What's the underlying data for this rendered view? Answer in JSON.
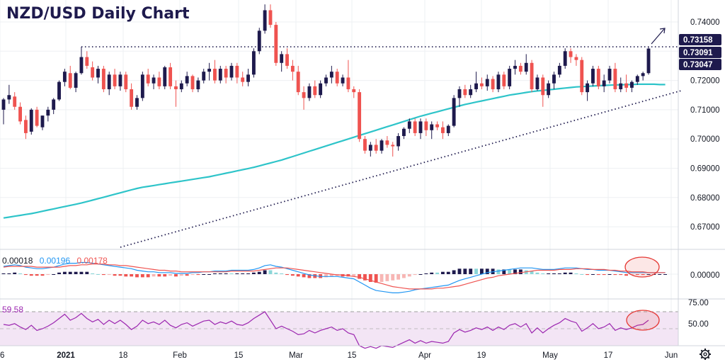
{
  "title": "NZD/USD Daily Chart",
  "colors": {
    "up": "#1e1a4d",
    "down": "#ef5350",
    "ma": "#2ec4c9",
    "macd_line": "#2196f3",
    "signal_line": "#ef5350",
    "rsi": "#9c27b0",
    "rsi_band": "#f3e5f5",
    "ellipse": "#e53935",
    "tag_bg": "#1e1a4d",
    "text": "#131722",
    "grid": "#eef0f3"
  },
  "x_labels": [
    "6",
    "2021",
    "18",
    "Feb",
    "15",
    "Mar",
    "15",
    "Apr",
    "19",
    "May",
    "17",
    "Jun"
  ],
  "price_axis": {
    "ticks": [
      "0.74000",
      "0.73000",
      "0.72000",
      "0.71000",
      "0.70000",
      "0.69000",
      "0.68000",
      "0.67000"
    ],
    "tags": [
      "0.73158",
      "0.73091",
      "0.73047"
    ]
  },
  "macd": {
    "values": [
      "0.00018",
      "0.00196",
      "0.00178"
    ],
    "axis_ticks": [
      "0.00000"
    ]
  },
  "rsi": {
    "value": "59.58",
    "axis_ticks": [
      "75.00",
      "50.00"
    ]
  },
  "gear_icon": "gear-icon",
  "chart_data": {
    "type": "candlestick",
    "title": "NZD/USD Daily Chart",
    "ylim": [
      0.663,
      0.7475
    ],
    "resistance": 0.7315,
    "ma_label": "",
    "candles": [
      [
        0.71,
        0.714,
        0.705,
        0.7135
      ],
      [
        0.7135,
        0.7185,
        0.712,
        0.715
      ],
      [
        0.7145,
        0.716,
        0.71,
        0.711
      ],
      [
        0.711,
        0.7125,
        0.705,
        0.706
      ],
      [
        0.7065,
        0.708,
        0.7,
        0.702
      ],
      [
        0.7025,
        0.7105,
        0.7015,
        0.71
      ],
      [
        0.71,
        0.711,
        0.704,
        0.7045
      ],
      [
        0.704,
        0.708,
        0.703,
        0.708
      ],
      [
        0.708,
        0.711,
        0.706,
        0.71
      ],
      [
        0.71,
        0.714,
        0.7085,
        0.7135
      ],
      [
        0.7135,
        0.72,
        0.713,
        0.7195
      ],
      [
        0.7195,
        0.724,
        0.718,
        0.723
      ],
      [
        0.7225,
        0.725,
        0.717,
        0.7175
      ],
      [
        0.7175,
        0.723,
        0.716,
        0.7225
      ],
      [
        0.7225,
        0.7315,
        0.722,
        0.728
      ],
      [
        0.728,
        0.73,
        0.724,
        0.725
      ],
      [
        0.7245,
        0.7265,
        0.72,
        0.721
      ],
      [
        0.721,
        0.725,
        0.719,
        0.724
      ],
      [
        0.724,
        0.725,
        0.716,
        0.717
      ],
      [
        0.717,
        0.723,
        0.715,
        0.722
      ],
      [
        0.722,
        0.724,
        0.717,
        0.718
      ],
      [
        0.718,
        0.723,
        0.7165,
        0.722
      ],
      [
        0.722,
        0.723,
        0.716,
        0.717
      ],
      [
        0.717,
        0.719,
        0.71,
        0.711
      ],
      [
        0.711,
        0.715,
        0.71,
        0.714
      ],
      [
        0.714,
        0.723,
        0.713,
        0.722
      ],
      [
        0.722,
        0.724,
        0.718,
        0.719
      ],
      [
        0.719,
        0.722,
        0.717,
        0.721
      ],
      [
        0.721,
        0.723,
        0.717,
        0.718
      ],
      [
        0.718,
        0.725,
        0.717,
        0.7245
      ],
      [
        0.7245,
        0.726,
        0.717,
        0.718
      ],
      [
        0.718,
        0.72,
        0.711,
        0.717
      ],
      [
        0.717,
        0.72,
        0.716,
        0.719
      ],
      [
        0.719,
        0.723,
        0.718,
        0.7215
      ],
      [
        0.7215,
        0.722,
        0.716,
        0.717
      ],
      [
        0.717,
        0.721,
        0.716,
        0.72
      ],
      [
        0.72,
        0.724,
        0.719,
        0.723
      ],
      [
        0.723,
        0.726,
        0.72,
        0.724
      ],
      [
        0.724,
        0.727,
        0.719,
        0.72
      ],
      [
        0.72,
        0.725,
        0.719,
        0.724
      ],
      [
        0.724,
        0.725,
        0.719,
        0.721
      ],
      [
        0.721,
        0.726,
        0.72,
        0.725
      ],
      [
        0.725,
        0.726,
        0.719,
        0.721
      ],
      [
        0.721,
        0.723,
        0.718,
        0.7195
      ],
      [
        0.7195,
        0.724,
        0.718,
        0.722
      ],
      [
        0.722,
        0.731,
        0.721,
        0.73
      ],
      [
        0.73,
        0.738,
        0.729,
        0.737
      ],
      [
        0.737,
        0.746,
        0.736,
        0.744
      ],
      [
        0.744,
        0.746,
        0.738,
        0.739
      ],
      [
        0.739,
        0.74,
        0.725,
        0.726
      ],
      [
        0.726,
        0.73,
        0.723,
        0.729
      ],
      [
        0.729,
        0.731,
        0.724,
        0.725
      ],
      [
        0.725,
        0.727,
        0.72,
        0.723
      ],
      [
        0.723,
        0.725,
        0.715,
        0.716
      ],
      [
        0.716,
        0.718,
        0.71,
        0.714
      ],
      [
        0.714,
        0.719,
        0.713,
        0.718
      ],
      [
        0.718,
        0.72,
        0.714,
        0.715
      ],
      [
        0.715,
        0.72,
        0.714,
        0.719
      ],
      [
        0.719,
        0.722,
        0.718,
        0.721
      ],
      [
        0.721,
        0.725,
        0.719,
        0.723
      ],
      [
        0.723,
        0.724,
        0.718,
        0.719
      ],
      [
        0.719,
        0.722,
        0.718,
        0.721
      ],
      [
        0.721,
        0.727,
        0.716,
        0.717
      ],
      [
        0.717,
        0.718,
        0.714,
        0.716
      ],
      [
        0.716,
        0.717,
        0.699,
        0.7
      ],
      [
        0.7,
        0.701,
        0.695,
        0.696
      ],
      [
        0.696,
        0.699,
        0.694,
        0.698
      ],
      [
        0.698,
        0.7,
        0.695,
        0.696
      ],
      [
        0.696,
        0.7,
        0.695,
        0.6995
      ],
      [
        0.6995,
        0.701,
        0.697,
        0.698
      ],
      [
        0.698,
        0.699,
        0.694,
        0.6975
      ],
      [
        0.6975,
        0.702,
        0.696,
        0.701
      ],
      [
        0.701,
        0.704,
        0.7,
        0.7035
      ],
      [
        0.7035,
        0.707,
        0.702,
        0.706
      ],
      [
        0.706,
        0.707,
        0.701,
        0.702
      ],
      [
        0.702,
        0.707,
        0.7,
        0.706
      ],
      [
        0.706,
        0.707,
        0.701,
        0.703
      ],
      [
        0.703,
        0.706,
        0.7,
        0.705
      ],
      [
        0.705,
        0.706,
        0.703,
        0.704
      ],
      [
        0.704,
        0.706,
        0.7,
        0.702
      ],
      [
        0.702,
        0.705,
        0.701,
        0.7045
      ],
      [
        0.7045,
        0.715,
        0.704,
        0.714
      ],
      [
        0.714,
        0.718,
        0.711,
        0.717
      ],
      [
        0.717,
        0.7185,
        0.714,
        0.715
      ],
      [
        0.715,
        0.7185,
        0.714,
        0.717
      ],
      [
        0.717,
        0.723,
        0.716,
        0.719
      ],
      [
        0.719,
        0.721,
        0.717,
        0.718
      ],
      [
        0.718,
        0.722,
        0.7165,
        0.7205
      ],
      [
        0.7205,
        0.7215,
        0.716,
        0.717
      ],
      [
        0.717,
        0.723,
        0.716,
        0.722
      ],
      [
        0.722,
        0.723,
        0.717,
        0.718
      ],
      [
        0.718,
        0.725,
        0.717,
        0.724
      ],
      [
        0.724,
        0.727,
        0.722,
        0.725
      ],
      [
        0.725,
        0.726,
        0.722,
        0.723
      ],
      [
        0.723,
        0.729,
        0.722,
        0.726
      ],
      [
        0.726,
        0.727,
        0.716,
        0.717
      ],
      [
        0.717,
        0.722,
        0.7165,
        0.721
      ],
      [
        0.721,
        0.722,
        0.711,
        0.715
      ],
      [
        0.715,
        0.72,
        0.714,
        0.719
      ],
      [
        0.719,
        0.723,
        0.717,
        0.722
      ],
      [
        0.722,
        0.726,
        0.721,
        0.725
      ],
      [
        0.725,
        0.731,
        0.724,
        0.73
      ],
      [
        0.73,
        0.731,
        0.726,
        0.728
      ],
      [
        0.728,
        0.729,
        0.725,
        0.727
      ],
      [
        0.727,
        0.728,
        0.715,
        0.716
      ],
      [
        0.716,
        0.72,
        0.713,
        0.719
      ],
      [
        0.719,
        0.725,
        0.718,
        0.724
      ],
      [
        0.724,
        0.725,
        0.717,
        0.718
      ],
      [
        0.718,
        0.722,
        0.716,
        0.72
      ],
      [
        0.72,
        0.725,
        0.719,
        0.724
      ],
      [
        0.724,
        0.726,
        0.716,
        0.717
      ],
      [
        0.717,
        0.721,
        0.716,
        0.719
      ],
      [
        0.719,
        0.722,
        0.716,
        0.7175
      ],
      [
        0.7175,
        0.72,
        0.716,
        0.7195
      ],
      [
        0.7195,
        0.722,
        0.7185,
        0.7215
      ],
      [
        0.7215,
        0.723,
        0.72,
        0.7225
      ],
      [
        0.7225,
        0.7316,
        0.722,
        0.7309
      ]
    ],
    "ma": [
      0.673,
      0.6733,
      0.6736,
      0.6739,
      0.6742,
      0.6745,
      0.6749,
      0.6753,
      0.6757,
      0.6761,
      0.6765,
      0.6769,
      0.6773,
      0.6777,
      0.6781,
      0.6786,
      0.6791,
      0.6796,
      0.6801,
      0.6806,
      0.6811,
      0.6816,
      0.6821,
      0.6826,
      0.6831,
      0.6835,
      0.6838,
      0.6841,
      0.6844,
      0.6847,
      0.685,
      0.6853,
      0.6856,
      0.6859,
      0.6862,
      0.6865,
      0.6868,
      0.6871,
      0.6875,
      0.6879,
      0.6883,
      0.6887,
      0.6891,
      0.6895,
      0.6899,
      0.6903,
      0.6908,
      0.6913,
      0.6918,
      0.6923,
      0.6928,
      0.6934,
      0.694,
      0.6946,
      0.6952,
      0.6958,
      0.6964,
      0.697,
      0.6976,
      0.6982,
      0.6988,
      0.6994,
      0.7,
      0.7006,
      0.7012,
      0.7018,
      0.7024,
      0.703,
      0.7036,
      0.7042,
      0.7048,
      0.7054,
      0.706,
      0.7066,
      0.7072,
      0.7078,
      0.7083,
      0.7088,
      0.7093,
      0.7098,
      0.7103,
      0.7108,
      0.7113,
      0.7118,
      0.7122,
      0.7126,
      0.713,
      0.7134,
      0.7138,
      0.7142,
      0.7146,
      0.715,
      0.7153,
      0.7156,
      0.7159,
      0.7162,
      0.7164,
      0.7166,
      0.7168,
      0.717,
      0.7172,
      0.7174,
      0.7176,
      0.7178,
      0.7179,
      0.718,
      0.7181,
      0.7182,
      0.7183,
      0.7184,
      0.7185,
      0.7185,
      0.7186,
      0.7186,
      0.7187,
      0.7187,
      0.7187,
      0.7187,
      0.7186,
      0.7186
    ],
    "macd_line": [
      0.001,
      0.0011,
      0.0012,
      0.0011,
      0.0009,
      0.0008,
      0.0007,
      0.0007,
      0.0008,
      0.0009,
      0.0011,
      0.0013,
      0.0014,
      0.0014,
      0.0015,
      0.0015,
      0.0014,
      0.0013,
      0.0012,
      0.0011,
      0.001,
      0.0009,
      0.0008,
      0.0007,
      0.0005,
      0.0004,
      0.0003,
      0.0003,
      0.0002,
      0.0002,
      0.0002,
      0.0001,
      0.0001,
      0.0001,
      0.0002,
      0.0002,
      0.0003,
      0.0003,
      0.0004,
      0.0004,
      0.0004,
      0.0005,
      0.0005,
      0.0005,
      0.0005,
      0.0006,
      0.0008,
      0.0011,
      0.0012,
      0.001,
      0.0009,
      0.0007,
      0.0005,
      0.0003,
      0.0001,
      -0.0001,
      -0.0002,
      -0.0003,
      -0.0003,
      -0.0003,
      -0.0003,
      -0.0004,
      -0.0005,
      -0.0006,
      -0.001,
      -0.0014,
      -0.0018,
      -0.0021,
      -0.0022,
      -0.0023,
      -0.0024,
      -0.0024,
      -0.0023,
      -0.0022,
      -0.002,
      -0.0019,
      -0.0018,
      -0.0017,
      -0.0016,
      -0.0015,
      -0.0014,
      -0.0011,
      -0.0008,
      -0.0006,
      -0.0004,
      -0.0002,
      0.0,
      0.0002,
      0.0003,
      0.0004,
      0.0005,
      0.0006,
      0.0007,
      0.0008,
      0.0008,
      0.0008,
      0.0007,
      0.0006,
      0.0006,
      0.0006,
      0.0007,
      0.0008,
      0.0008,
      0.0008,
      0.0007,
      0.0006,
      0.0006,
      0.0005,
      0.0005,
      0.0005,
      0.0004,
      0.0003,
      0.0002,
      0.0002,
      0.0002,
      0.0002,
      0.0002,
      0.0002,
      0.0002,
      0.0002
    ],
    "signal_line": [
      0.0009,
      0.001,
      0.001,
      0.001,
      0.001,
      0.001,
      0.0009,
      0.0009,
      0.0009,
      0.0009,
      0.0009,
      0.001,
      0.0011,
      0.0011,
      0.0012,
      0.0012,
      0.0013,
      0.0013,
      0.0013,
      0.0012,
      0.0012,
      0.0011,
      0.0011,
      0.001,
      0.0009,
      0.0008,
      0.0007,
      0.0006,
      0.0005,
      0.0005,
      0.0004,
      0.0004,
      0.0003,
      0.0003,
      0.0003,
      0.0003,
      0.0003,
      0.0003,
      0.0003,
      0.0003,
      0.0003,
      0.0004,
      0.0004,
      0.0004,
      0.0004,
      0.0004,
      0.0005,
      0.0006,
      0.0007,
      0.0008,
      0.0008,
      0.0008,
      0.0007,
      0.0006,
      0.0005,
      0.0004,
      0.0003,
      0.0002,
      0.0001,
      0.0,
      -0.0001,
      -0.0001,
      -0.0002,
      -0.0003,
      -0.0004,
      -0.0006,
      -0.0008,
      -0.001,
      -0.0012,
      -0.0014,
      -0.0016,
      -0.0017,
      -0.0018,
      -0.0019,
      -0.0019,
      -0.0019,
      -0.0019,
      -0.0019,
      -0.0018,
      -0.0018,
      -0.0017,
      -0.0016,
      -0.0015,
      -0.0013,
      -0.0011,
      -0.0009,
      -0.0007,
      -0.0005,
      -0.0004,
      -0.0002,
      -0.0001,
      0.0,
      0.0001,
      0.0002,
      0.0003,
      0.0004,
      0.0005,
      0.0005,
      0.0005,
      0.0005,
      0.0006,
      0.0006,
      0.0006,
      0.0007,
      0.0007,
      0.0007,
      0.0006,
      0.0006,
      0.0006,
      0.0005,
      0.0005,
      0.0004,
      0.0004,
      0.0003,
      0.0003,
      0.0003,
      0.0002,
      0.0002,
      0.0002,
      0.0002
    ],
    "rsi": [
      55,
      54,
      56,
      52,
      49,
      54,
      48,
      50,
      53,
      57,
      62,
      67,
      60,
      63,
      68,
      62,
      58,
      61,
      55,
      60,
      56,
      60,
      55,
      49,
      53,
      60,
      56,
      58,
      55,
      60,
      54,
      51,
      55,
      57,
      53,
      56,
      59,
      60,
      55,
      58,
      56,
      59,
      55,
      54,
      57,
      62,
      66,
      70,
      60,
      50,
      53,
      50,
      47,
      43,
      44,
      48,
      45,
      48,
      50,
      52,
      48,
      50,
      45,
      43,
      30,
      27,
      29,
      27,
      30,
      29,
      28,
      31,
      34,
      37,
      33,
      36,
      33,
      35,
      34,
      33,
      35,
      45,
      49,
      46,
      48,
      51,
      49,
      52,
      48,
      52,
      49,
      54,
      56,
      52,
      56,
      45,
      51,
      45,
      50,
      54,
      57,
      62,
      59,
      57,
      47,
      51,
      56,
      50,
      52,
      56,
      48,
      51,
      49,
      51,
      54,
      55,
      60
    ],
    "rsi_levels": [
      70,
      50,
      30
    ],
    "rsi_current": 59.58,
    "macd_current": [
      0.00018,
      0.00196,
      0.00178
    ]
  }
}
